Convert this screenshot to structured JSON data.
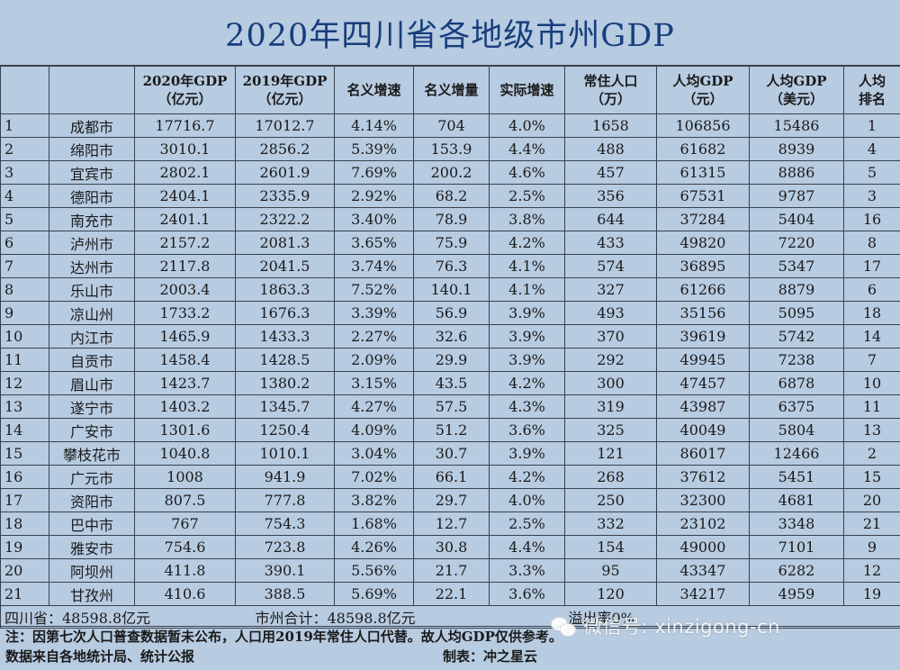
{
  "title": "2020年四川省各地级市州GDP",
  "headers": [
    {
      "key": "idx",
      "line1": "",
      "line2": ""
    },
    {
      "key": "city",
      "line1": "",
      "line2": ""
    },
    {
      "key": "gdp2020",
      "line1": "2020年GDP",
      "line2": "（亿元）"
    },
    {
      "key": "gdp2019",
      "line1": "2019年GDP",
      "line2": "（亿元）"
    },
    {
      "key": "nominal_rate",
      "line1": "名义增速",
      "line2": ""
    },
    {
      "key": "nominal_inc",
      "line1": "名义增量",
      "line2": ""
    },
    {
      "key": "real_rate",
      "line1": "实际增速",
      "line2": ""
    },
    {
      "key": "population",
      "line1": "常住人口",
      "line2": "（万）"
    },
    {
      "key": "per_capita_cny",
      "line1": "人均GDP",
      "line2": "（元）"
    },
    {
      "key": "per_capita_usd",
      "line1": "人均GDP",
      "line2": "（美元）"
    },
    {
      "key": "rank",
      "line1": "人均",
      "line2": "排名"
    }
  ],
  "rows": [
    [
      "1",
      "成都市",
      "17716.7",
      "17012.7",
      "4.14%",
      "704",
      "4.0%",
      "1658",
      "106856",
      "15486",
      "1"
    ],
    [
      "2",
      "绵阳市",
      "3010.1",
      "2856.2",
      "5.39%",
      "153.9",
      "4.4%",
      "488",
      "61682",
      "8939",
      "4"
    ],
    [
      "3",
      "宜宾市",
      "2802.1",
      "2601.9",
      "7.69%",
      "200.2",
      "4.6%",
      "457",
      "61315",
      "8886",
      "5"
    ],
    [
      "4",
      "德阳市",
      "2404.1",
      "2335.9",
      "2.92%",
      "68.2",
      "2.5%",
      "356",
      "67531",
      "9787",
      "3"
    ],
    [
      "5",
      "南充市",
      "2401.1",
      "2322.2",
      "3.40%",
      "78.9",
      "3.8%",
      "644",
      "37284",
      "5404",
      "16"
    ],
    [
      "6",
      "泸州市",
      "2157.2",
      "2081.3",
      "3.65%",
      "75.9",
      "4.2%",
      "433",
      "49820",
      "7220",
      "8"
    ],
    [
      "7",
      "达州市",
      "2117.8",
      "2041.5",
      "3.74%",
      "76.3",
      "4.1%",
      "574",
      "36895",
      "5347",
      "17"
    ],
    [
      "8",
      "乐山市",
      "2003.4",
      "1863.3",
      "7.52%",
      "140.1",
      "4.1%",
      "327",
      "61266",
      "8879",
      "6"
    ],
    [
      "9",
      "凉山州",
      "1733.2",
      "1676.3",
      "3.39%",
      "56.9",
      "3.9%",
      "493",
      "35156",
      "5095",
      "18"
    ],
    [
      "10",
      "内江市",
      "1465.9",
      "1433.3",
      "2.27%",
      "32.6",
      "3.9%",
      "370",
      "39619",
      "5742",
      "14"
    ],
    [
      "11",
      "自贡市",
      "1458.4",
      "1428.5",
      "2.09%",
      "29.9",
      "3.9%",
      "292",
      "49945",
      "7238",
      "7"
    ],
    [
      "12",
      "眉山市",
      "1423.7",
      "1380.2",
      "3.15%",
      "43.5",
      "4.2%",
      "300",
      "47457",
      "6878",
      "10"
    ],
    [
      "13",
      "遂宁市",
      "1403.2",
      "1345.7",
      "4.27%",
      "57.5",
      "4.3%",
      "319",
      "43987",
      "6375",
      "11"
    ],
    [
      "14",
      "广安市",
      "1301.6",
      "1250.4",
      "4.09%",
      "51.2",
      "3.6%",
      "325",
      "40049",
      "5804",
      "13"
    ],
    [
      "15",
      "攀枝花市",
      "1040.8",
      "1010.1",
      "3.04%",
      "30.7",
      "3.9%",
      "121",
      "86017",
      "12466",
      "2"
    ],
    [
      "16",
      "广元市",
      "1008",
      "941.9",
      "7.02%",
      "66.1",
      "4.2%",
      "268",
      "37612",
      "5451",
      "15"
    ],
    [
      "17",
      "资阳市",
      "807.5",
      "777.8",
      "3.82%",
      "29.7",
      "4.0%",
      "250",
      "32300",
      "4681",
      "20"
    ],
    [
      "18",
      "巴中市",
      "767",
      "754.3",
      "1.68%",
      "12.7",
      "2.5%",
      "332",
      "23102",
      "3348",
      "21"
    ],
    [
      "19",
      "雅安市",
      "754.6",
      "723.8",
      "4.26%",
      "30.8",
      "4.4%",
      "154",
      "49000",
      "7101",
      "9"
    ],
    [
      "20",
      "阿坝州",
      "411.8",
      "390.1",
      "5.56%",
      "21.7",
      "3.3%",
      "95",
      "43347",
      "6282",
      "12"
    ],
    [
      "21",
      "甘孜州",
      "410.6",
      "388.5",
      "5.69%",
      "22.1",
      "3.6%",
      "120",
      "34217",
      "4959",
      "19"
    ]
  ],
  "summary": {
    "province": "四川省：48598.8亿元",
    "city_total": "市州合计：48598.8亿元",
    "overflow": "溢出率0%"
  },
  "notes": {
    "line1": "注：因第七次人口普查数据暂未公布，人口用2019年常住人口代替。故人均GDP仅供参考。",
    "line2": "数据来自各地统计局、统计公报",
    "maker": "制表：冲之星云"
  },
  "watermark": "微信号: xinzigong-cn",
  "icons": {
    "watermark": "wechat-icon"
  },
  "colors": {
    "background": "#b7cbe1",
    "title": "#173e7c",
    "grid": "#39424c"
  }
}
